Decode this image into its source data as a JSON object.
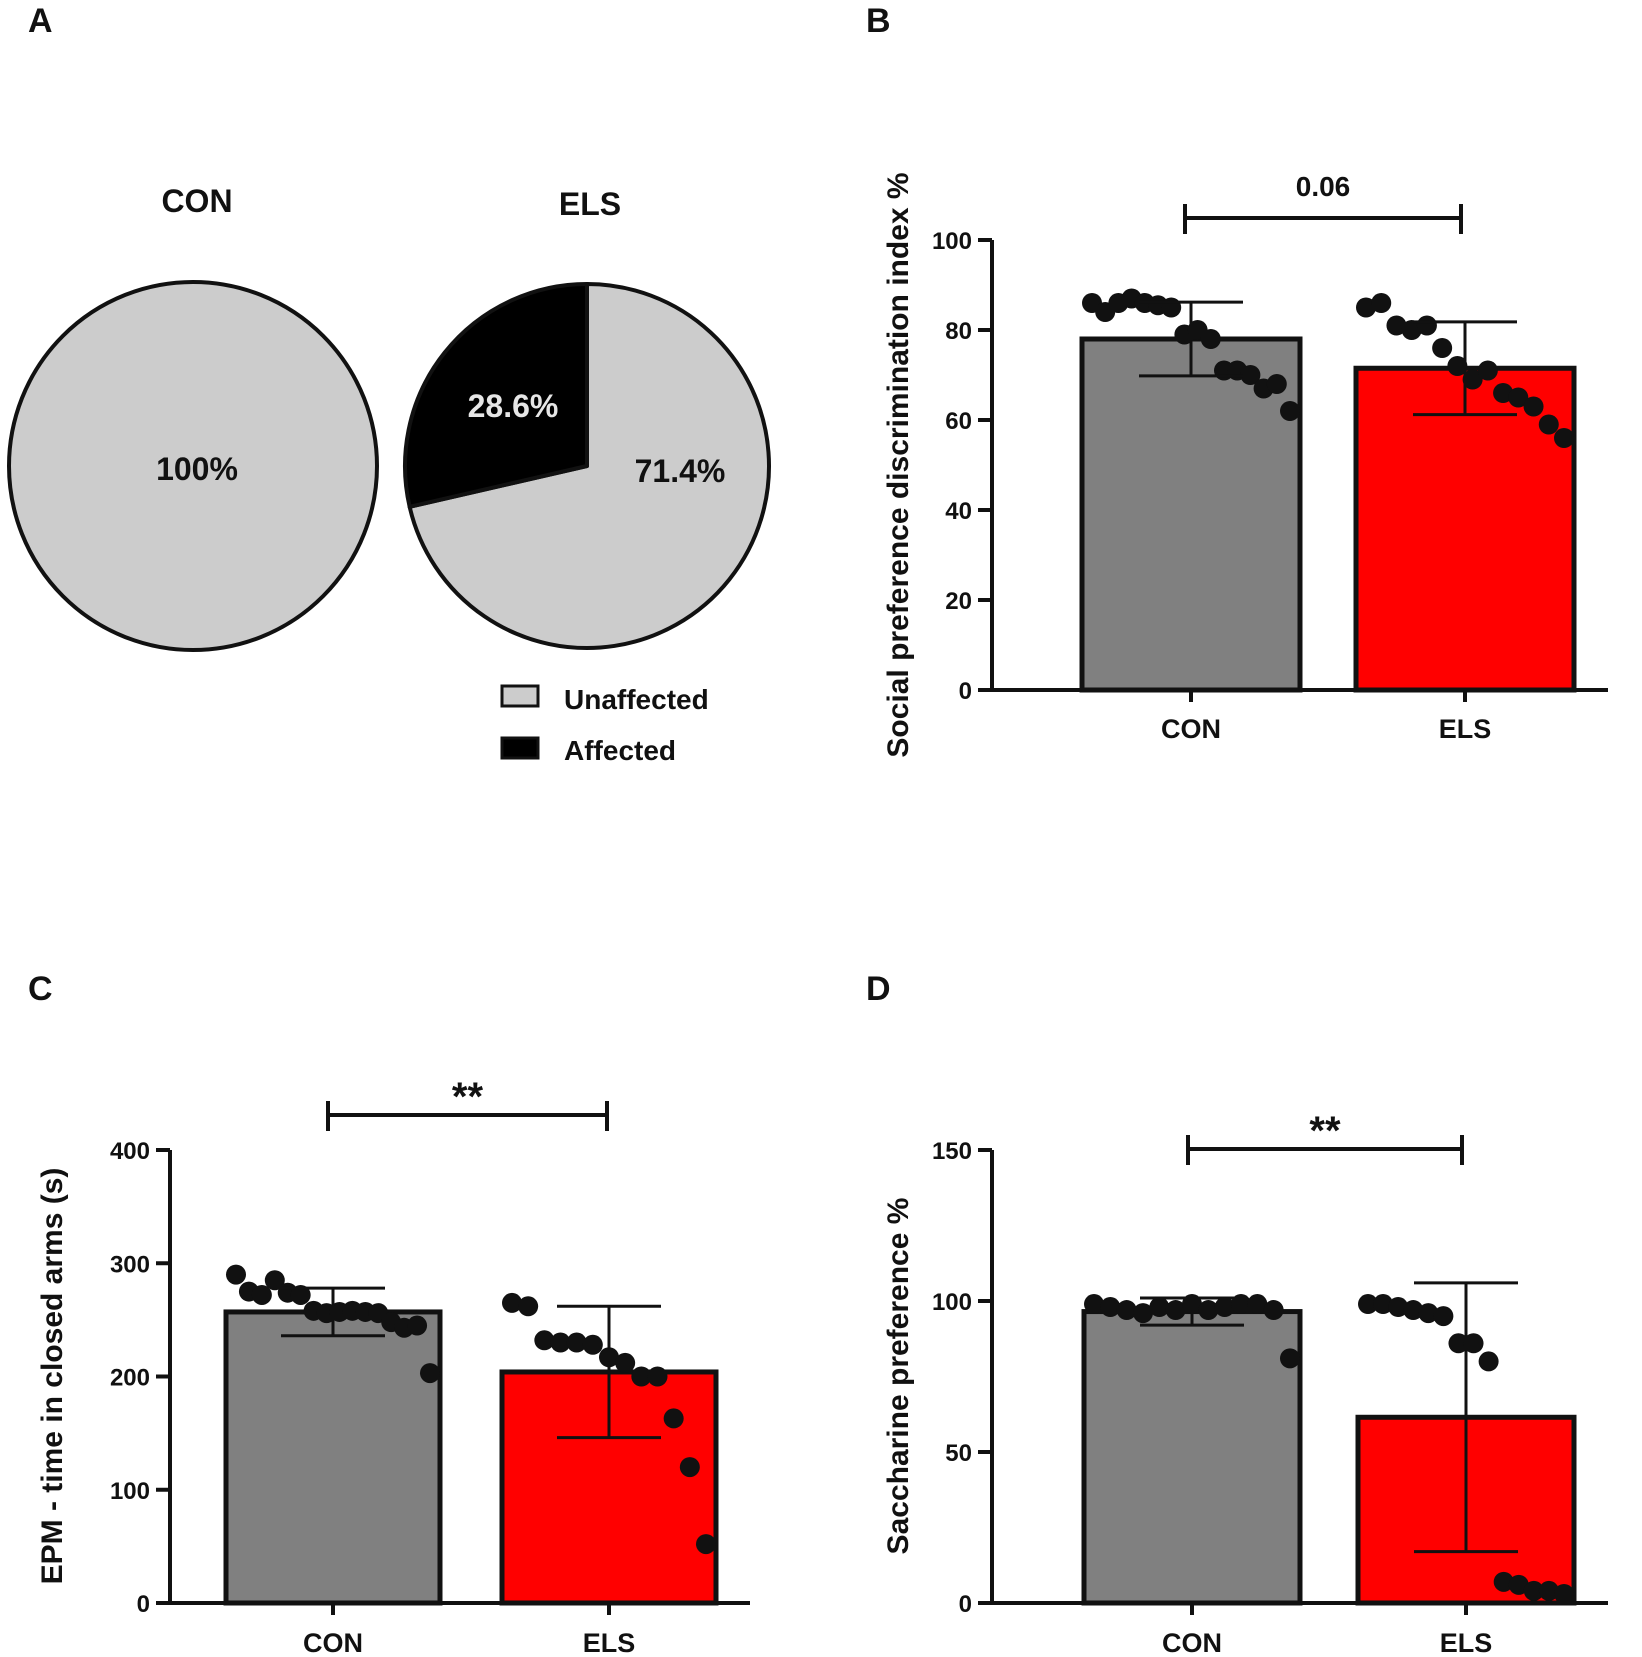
{
  "colors": {
    "unaffected": "#cccccc",
    "affected": "#000000",
    "con_bar": "#808080",
    "els_bar": "#ff0000",
    "ink": "#111111"
  },
  "chart_data": [
    {
      "panel": "A",
      "type": "pie",
      "legend": [
        {
          "label": "Unaffected",
          "color": "#cccccc"
        },
        {
          "label": "Affected",
          "color": "#000000"
        }
      ],
      "pies": [
        {
          "title": "CON",
          "slices": [
            {
              "name": "Unaffected",
              "value": 100,
              "label": "100%"
            }
          ]
        },
        {
          "title": "ELS",
          "slices": [
            {
              "name": "Unaffected",
              "value": 71.4,
              "label": "71.4%"
            },
            {
              "name": "Affected",
              "value": 28.6,
              "label": "28.6%"
            }
          ]
        }
      ]
    },
    {
      "panel": "B",
      "type": "bar",
      "ylabel": "Social preference discrimination index %",
      "ylim": [
        0,
        100
      ],
      "yticks": [
        0,
        20,
        40,
        60,
        80,
        100
      ],
      "categories": [
        "CON",
        "ELS"
      ],
      "means": [
        78,
        71.5
      ],
      "sd": [
        8.2,
        10.3
      ],
      "points": [
        [
          86,
          84,
          86,
          87,
          86,
          85.5,
          85,
          79,
          80,
          78,
          71,
          71,
          70,
          67,
          68,
          62
        ],
        [
          85,
          86,
          81,
          80,
          81,
          76,
          72,
          69,
          71,
          66,
          65,
          63,
          59,
          56
        ]
      ],
      "significance": "0.06"
    },
    {
      "panel": "C",
      "type": "bar",
      "ylabel": "EPM - time in closed arms (s)",
      "ylim": [
        0,
        400
      ],
      "yticks": [
        0,
        100,
        200,
        300,
        400
      ],
      "categories": [
        "CON",
        "ELS"
      ],
      "means": [
        257,
        204
      ],
      "sd": [
        21,
        58
      ],
      "points": [
        [
          290,
          275,
          272,
          285,
          274,
          272,
          258,
          256,
          257,
          258,
          257,
          256,
          248,
          243,
          245,
          203
        ],
        [
          265,
          262,
          232,
          230,
          230,
          228,
          217,
          212,
          200,
          200,
          163,
          120,
          52
        ]
      ],
      "significance": "**"
    },
    {
      "panel": "D",
      "type": "bar",
      "ylabel": "Saccharine preference %",
      "ylim": [
        0,
        150
      ],
      "yticks": [
        0,
        50,
        100,
        150
      ],
      "categories": [
        "CON",
        "ELS"
      ],
      "means": [
        96.5,
        61.5
      ],
      "sd": [
        4.5,
        44.5
      ],
      "points": [
        [
          99,
          98,
          97,
          96,
          98,
          97,
          99,
          97,
          98,
          99,
          99,
          97,
          81
        ],
        [
          99,
          99,
          98,
          97,
          96,
          95,
          86,
          86,
          80,
          7,
          6,
          4,
          4,
          3
        ]
      ],
      "significance": "**"
    }
  ]
}
